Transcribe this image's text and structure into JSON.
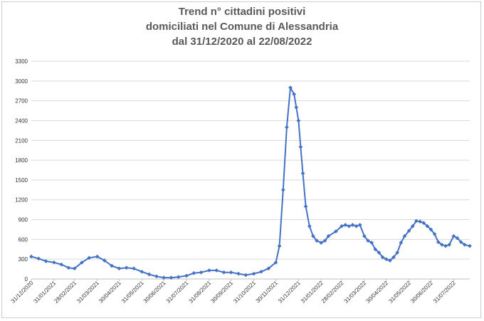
{
  "chart_data": {
    "type": "line",
    "title": [
      "Trend n° cittadini positivi",
      "domiciliati nel Comune di Alessandria",
      "dal 31/12/2020 al 22/08/2022"
    ],
    "ylim": [
      0,
      3300
    ],
    "y_ticks": [
      "0",
      "300",
      "600",
      "900",
      "1200",
      "1500",
      "1800",
      "2100",
      "2400",
      "2700",
      "3000",
      "3300"
    ],
    "x_tick_labels": [
      "31/12/2020",
      "31/01/2021",
      "28/02/2021",
      "31/03/2021",
      "30/04/2021",
      "31/05/2021",
      "30/06/2021",
      "31/07/2021",
      "31/08/2021",
      "30/09/2021",
      "31/10/2021",
      "30/11/2021",
      "31/12/2021",
      "31/01/2022",
      "28/02/2022",
      "31/03/2022",
      "30/04/2022",
      "31/05/2022",
      "30/06/2022",
      "31/07/2022"
    ],
    "grid": true,
    "legend": "none",
    "color": "#4472c4",
    "series": [
      {
        "x": [
          "2020-12-31",
          "2021-01-10",
          "2021-01-20",
          "2021-01-31",
          "2021-02-10",
          "2021-02-20",
          "2021-02-28",
          "2021-03-10",
          "2021-03-20",
          "2021-03-31",
          "2021-04-10",
          "2021-04-20",
          "2021-04-30",
          "2021-05-10",
          "2021-05-20",
          "2021-05-31",
          "2021-06-10",
          "2021-06-20",
          "2021-06-30",
          "2021-07-10",
          "2021-07-20",
          "2021-07-31",
          "2021-08-10",
          "2021-08-20",
          "2021-08-31",
          "2021-09-10",
          "2021-09-20",
          "2021-09-30",
          "2021-10-10",
          "2021-10-20",
          "2021-10-31",
          "2021-11-10",
          "2021-11-20",
          "2021-11-30",
          "2021-12-05",
          "2021-12-10",
          "2021-12-15",
          "2021-12-20",
          "2021-12-25",
          "2021-12-28",
          "2021-12-31",
          "2022-01-03",
          "2022-01-06",
          "2022-01-10",
          "2022-01-15",
          "2022-01-20",
          "2022-01-25",
          "2022-01-31",
          "2022-02-05",
          "2022-02-10",
          "2022-02-20",
          "2022-02-28",
          "2022-03-05",
          "2022-03-10",
          "2022-03-15",
          "2022-03-20",
          "2022-03-25",
          "2022-03-31",
          "2022-04-05",
          "2022-04-10",
          "2022-04-15",
          "2022-04-20",
          "2022-04-25",
          "2022-04-30",
          "2022-05-05",
          "2022-05-10",
          "2022-05-15",
          "2022-05-20",
          "2022-05-25",
          "2022-05-31",
          "2022-06-05",
          "2022-06-10",
          "2022-06-15",
          "2022-06-20",
          "2022-06-25",
          "2022-06-30",
          "2022-07-05",
          "2022-07-10",
          "2022-07-15",
          "2022-07-20",
          "2022-07-25",
          "2022-07-31",
          "2022-08-05",
          "2022-08-10",
          "2022-08-15",
          "2022-08-22"
        ],
        "y": [
          340,
          310,
          270,
          250,
          220,
          170,
          160,
          250,
          320,
          340,
          280,
          200,
          160,
          170,
          160,
          110,
          70,
          40,
          20,
          20,
          30,
          50,
          90,
          100,
          130,
          130,
          100,
          100,
          80,
          60,
          80,
          110,
          160,
          250,
          500,
          1350,
          2300,
          2900,
          2800,
          2600,
          2400,
          2000,
          1600,
          1100,
          800,
          650,
          580,
          550,
          580,
          650,
          720,
          800,
          820,
          800,
          820,
          800,
          820,
          650,
          580,
          550,
          450,
          400,
          330,
          300,
          280,
          330,
          400,
          550,
          650,
          730,
          800,
          880,
          870,
          850,
          800,
          750,
          680,
          560,
          520,
          500,
          520,
          650,
          620,
          560,
          520,
          500
        ]
      }
    ]
  }
}
